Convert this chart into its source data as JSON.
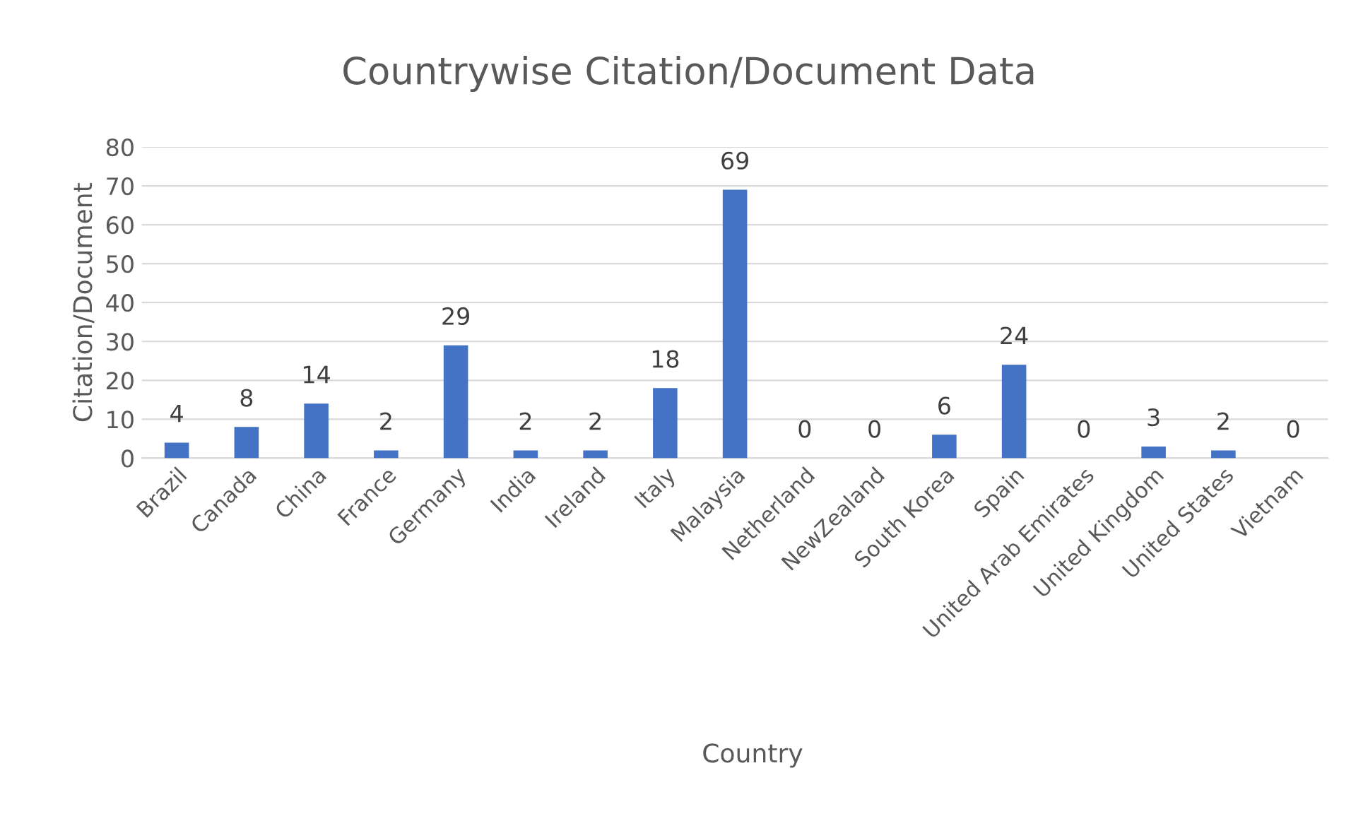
{
  "chart_data": {
    "type": "bar",
    "title": "Countrywise Citation/Document Data",
    "xlabel": "Country",
    "ylabel": "Citation/Document",
    "categories": [
      "Brazil",
      "Canada",
      "China",
      "France",
      "Germany",
      "India",
      "Ireland",
      "Italy",
      "Malaysia",
      "Netherland",
      "NewZealand",
      "South Korea",
      "Spain",
      "United Arab Emirates",
      "United Kingdom",
      "United States",
      "Vietnam"
    ],
    "values": [
      4,
      8,
      14,
      2,
      29,
      2,
      2,
      18,
      69,
      0,
      0,
      6,
      24,
      0,
      3,
      2,
      0
    ],
    "color": "#4472c4",
    "ylim": [
      0,
      80
    ],
    "yticks": [
      0,
      10,
      20,
      30,
      40,
      50,
      60,
      70,
      80
    ],
    "grid": "y",
    "data_labels": true,
    "legend": false
  }
}
